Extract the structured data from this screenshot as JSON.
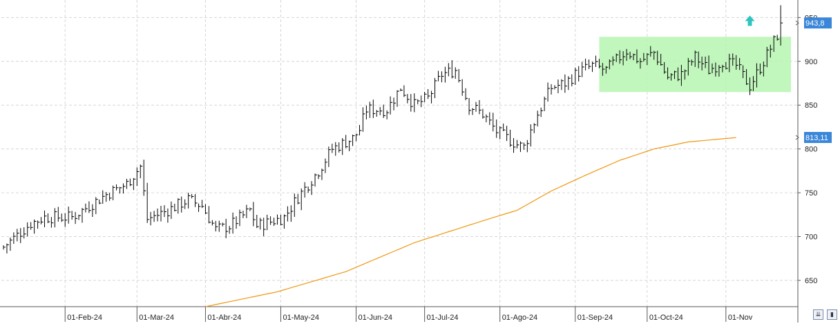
{
  "chart_data": {
    "type": "ohlc",
    "title": "",
    "xlabel": "",
    "ylabel": "",
    "ylim": [
      620,
      970
    ],
    "y_ticks": [
      650,
      700,
      750,
      800,
      850,
      900,
      950
    ],
    "grid": true,
    "x_month_labels": [
      {
        "label": "01-Feb-24",
        "bar_index": 18
      },
      {
        "label": "01-Mar-24",
        "bar_index": 39
      },
      {
        "label": "01-Abr-24",
        "bar_index": 59
      },
      {
        "label": "01-May-24",
        "bar_index": 81
      },
      {
        "label": "01-Jun-24",
        "bar_index": 103
      },
      {
        "label": "01-Jul-24",
        "bar_index": 123
      },
      {
        "label": "01-Ago-24",
        "bar_index": 145
      },
      {
        "label": "01-Sep-24",
        "bar_index": 167
      },
      {
        "label": "01-Oct-24",
        "bar_index": 188
      },
      {
        "label": "01-Nov",
        "bar_index": 211
      }
    ],
    "series": [
      {
        "name": "",
        "kind": "price_bars",
        "color": "#000000",
        "close_points": [
          [
            0,
            688
          ],
          [
            8,
            715
          ],
          [
            12,
            722
          ],
          [
            20,
            722
          ],
          [
            30,
            748
          ],
          [
            36,
            760
          ],
          [
            40,
            780
          ],
          [
            42,
            720
          ],
          [
            48,
            730
          ],
          [
            54,
            742
          ],
          [
            58,
            735
          ],
          [
            62,
            708
          ],
          [
            66,
            712
          ],
          [
            72,
            730
          ],
          [
            74,
            712
          ],
          [
            82,
            722
          ],
          [
            86,
            745
          ],
          [
            92,
            775
          ],
          [
            96,
            800
          ],
          [
            102,
            812
          ],
          [
            104,
            822
          ],
          [
            106,
            845
          ],
          [
            112,
            845
          ],
          [
            116,
            870
          ],
          [
            120,
            850
          ],
          [
            124,
            858
          ],
          [
            128,
            885
          ],
          [
            132,
            890
          ],
          [
            136,
            850
          ],
          [
            140,
            840
          ],
          [
            144,
            820
          ],
          [
            150,
            805
          ],
          [
            152,
            802
          ],
          [
            156,
            840
          ],
          [
            160,
            870
          ],
          [
            164,
            875
          ],
          [
            168,
            888
          ],
          [
            172,
            895
          ],
          [
            176,
            890
          ],
          [
            182,
            912
          ],
          [
            186,
            900
          ],
          [
            190,
            910
          ],
          [
            194,
            882
          ],
          [
            198,
            885
          ],
          [
            202,
            905
          ],
          [
            206,
            890
          ],
          [
            210,
            900
          ],
          [
            214,
            895
          ],
          [
            218,
            872
          ],
          [
            222,
            900
          ],
          [
            226,
            930
          ],
          [
            227,
            940
          ]
        ]
      },
      {
        "name": "",
        "kind": "moving_average",
        "color": "#f0960f",
        "points": [
          [
            59,
            620
          ],
          [
            80,
            637
          ],
          [
            100,
            660
          ],
          [
            120,
            693
          ],
          [
            140,
            718
          ],
          [
            150,
            730
          ],
          [
            160,
            752
          ],
          [
            170,
            770
          ],
          [
            180,
            787
          ],
          [
            190,
            800
          ],
          [
            200,
            808
          ],
          [
            214,
            813
          ]
        ]
      }
    ],
    "price_tags": [
      {
        "value": 943.8,
        "label": "943,8",
        "color": "#3a86d8"
      },
      {
        "value": 813.11,
        "label": "813,11",
        "color": "#3a86d8"
      }
    ],
    "annotations": [
      {
        "kind": "range_box",
        "x_from": 174,
        "x_to": 230,
        "y_from": 865,
        "y_to": 928,
        "color": "#b6f5b2"
      },
      {
        "kind": "up_arrow",
        "x": 218,
        "y": 946,
        "color": "#2ec4c0"
      }
    ],
    "bar_count": 231
  }
}
